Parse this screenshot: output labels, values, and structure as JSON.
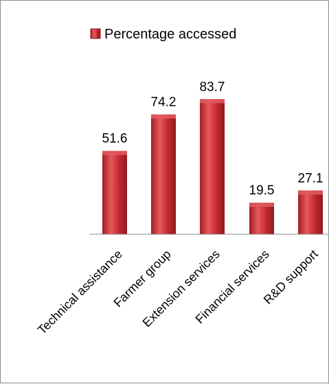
{
  "chart_data": {
    "type": "bar",
    "categories": [
      "Technical assistance",
      "Farmer group",
      "Extension services",
      "Financial services",
      "R&D support"
    ],
    "series": [
      {
        "name": "Percentage accessed",
        "values": [
          51.6,
          74.2,
          83.7,
          19.5,
          27.1
        ]
      }
    ],
    "data_labels": [
      "51.6",
      "74.2",
      "83.7",
      "19.5",
      "27.1"
    ],
    "title": "",
    "xlabel": "",
    "ylabel": "",
    "ylim": [
      0,
      100
    ],
    "y_axis_visible": false,
    "grid": false,
    "legend_position": "top",
    "colors": {
      "bar": "#c0272d",
      "bar_highlight": "#e8585d",
      "bar_dark": "#8e1a1f",
      "axis": "#8c8c8c"
    }
  }
}
